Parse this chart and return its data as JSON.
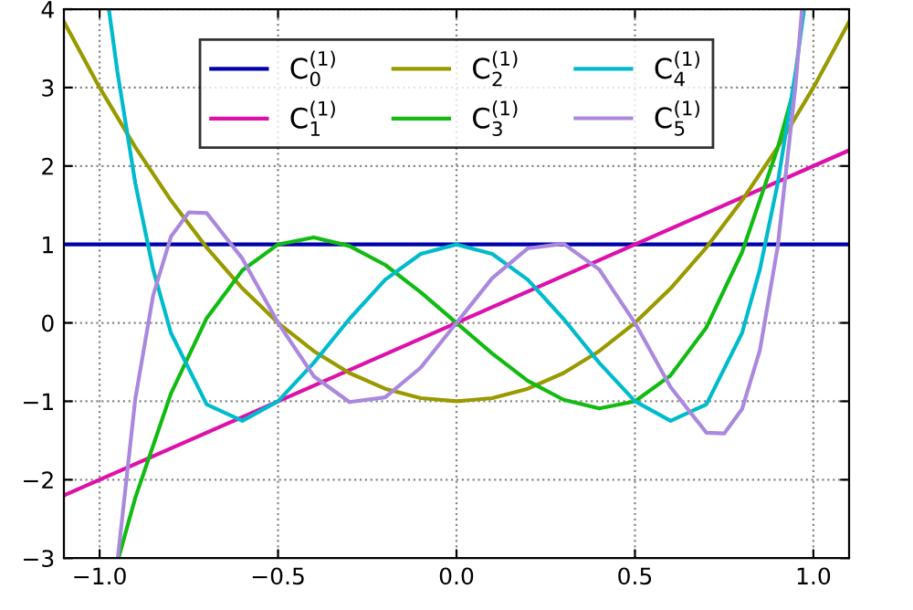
{
  "chart_data": {
    "type": "line",
    "xlim": [
      -1.1,
      1.1
    ],
    "ylim": [
      -3,
      4
    ],
    "xticks": [
      {
        "value": -1.0,
        "label": "−1.0"
      },
      {
        "value": -0.5,
        "label": "−0.5"
      },
      {
        "value": 0.0,
        "label": "0.0"
      },
      {
        "value": 0.5,
        "label": "0.5"
      },
      {
        "value": 1.0,
        "label": "1.0"
      }
    ],
    "yticks": [
      {
        "value": -3,
        "label": "−3"
      },
      {
        "value": -2,
        "label": "−2"
      },
      {
        "value": -1,
        "label": "−1"
      },
      0,
      1,
      2,
      3,
      4
    ],
    "grid": true,
    "legend": "top",
    "line_style": "solid",
    "marker": "none",
    "series": [
      {
        "name": "C$^{(1)}$$_{0}$",
        "color": "#0000aa",
        "x": [
          -1.1,
          1.1
        ],
        "values": [
          1,
          1
        ]
      },
      {
        "name": "C$^{(1)}$$_{1}$",
        "color": "#dd11aa",
        "x": [
          -1.1,
          1.1
        ],
        "values": [
          -2.2,
          2.2
        ]
      },
      {
        "name": "C$^{(1)}$$_{2}$",
        "color": "#999900",
        "x": [
          -1.1,
          -1.0,
          -0.9,
          -0.8,
          -0.7,
          -0.6,
          -0.5,
          -0.4,
          -0.3,
          -0.2,
          -0.1,
          0,
          0.1,
          0.2,
          0.3,
          0.4,
          0.5,
          0.6,
          0.7,
          0.8,
          0.9,
          1.0,
          1.1
        ],
        "values": [
          3.84,
          3,
          2.24,
          1.56,
          0.96,
          0.44,
          0,
          -0.36,
          -0.64,
          -0.84,
          -0.96,
          -1,
          -0.96,
          -0.84,
          -0.64,
          -0.36,
          0,
          0.44,
          0.96,
          1.56,
          2.24,
          3,
          3.84
        ]
      },
      {
        "name": "C$^{(1)}$$_{3}$",
        "color": "#11bb11",
        "x": [
          -0.947,
          -0.9,
          -0.8,
          -0.7,
          -0.6,
          -0.5,
          -0.4,
          -0.3,
          -0.2,
          -0.1,
          0,
          0.1,
          0.2,
          0.3,
          0.4,
          0.5,
          0.6,
          0.7,
          0.8,
          0.9,
          0.947
        ],
        "values": [
          -3.0,
          -2.23,
          -0.9,
          0.06,
          0.67,
          1,
          1.09,
          0.98,
          0.74,
          0.39,
          0,
          -0.39,
          -0.74,
          -0.98,
          -1.09,
          -1,
          -0.67,
          -0.06,
          0.9,
          2.23,
          3.0
        ]
      },
      {
        "name": "C$^{(1)}$$_{4}$",
        "color": "#00bbcc",
        "x": [
          -0.974,
          -0.95,
          -0.9,
          -0.85,
          -0.8,
          -0.7,
          -0.6,
          -0.5,
          -0.4,
          -0.3,
          -0.2,
          -0.1,
          0,
          0.1,
          0.2,
          0.3,
          0.4,
          0.5,
          0.6,
          0.7,
          0.8,
          0.85,
          0.9,
          0.95,
          0.974
        ],
        "values": [
          4.0,
          3.2,
          1.78,
          0.68,
          -0.13,
          -1.04,
          -1.25,
          -1,
          -0.51,
          0.05,
          0.55,
          0.88,
          1,
          0.88,
          0.55,
          0.05,
          -0.51,
          -1,
          -1.25,
          -1.04,
          -0.13,
          0.68,
          1.78,
          3.2,
          4.0
        ]
      },
      {
        "name": "C$^{(1)}$$_{5}$",
        "color": "#aa88dd",
        "x": [
          -0.949,
          -0.9,
          -0.85,
          -0.8,
          -0.75,
          -0.7,
          -0.6,
          -0.5,
          -0.4,
          -0.3,
          -0.2,
          -0.1,
          0,
          0.1,
          0.2,
          0.3,
          0.4,
          0.5,
          0.6,
          0.7,
          0.75,
          0.8,
          0.85,
          0.9,
          0.95,
          0.968
        ],
        "values": [
          -3.0,
          -0.97,
          0.35,
          1.1,
          1.41,
          1.4,
          0.82,
          0,
          -0.68,
          -1.01,
          -0.95,
          -0.57,
          0,
          0.57,
          0.95,
          1.01,
          0.68,
          0,
          -0.82,
          -1.4,
          -1.41,
          -1.1,
          -0.35,
          0.97,
          3.03,
          4.0
        ]
      }
    ]
  }
}
